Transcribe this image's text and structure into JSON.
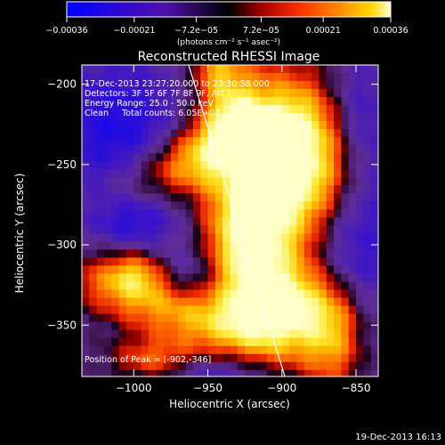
{
  "chart_data": {
    "type": "heatmap",
    "title": "Reconstructed RHESSI Image",
    "xlabel": "Heliocentric X (arcsec)",
    "ylabel": "Heliocentric Y (arcsec)",
    "xlim": [
      -1035,
      -835
    ],
    "ylim": [
      -382,
      -188
    ],
    "x_ticks": [
      -1000,
      -950,
      -900,
      -850
    ],
    "x_tick_labels": [
      "−1000",
      "−950",
      "−900",
      "−850"
    ],
    "y_ticks": [
      -200,
      -250,
      -300,
      -350
    ],
    "y_tick_labels": [
      "−200",
      "−250",
      "−300",
      "−350"
    ],
    "colorbar": {
      "label": "(photons cm⁻² s⁻¹ asec⁻²)",
      "range": [
        -0.00036,
        0.00036
      ],
      "ticks": [
        -0.00036,
        -0.00021,
        -7.2e-05,
        7.2e-05,
        0.00021,
        0.00036
      ],
      "tick_labels": [
        "−0.00036",
        "−0.00021",
        "−7.2e−05",
        "7.2e−05",
        "0.00021",
        "0.00036"
      ],
      "colors": [
        "#0000ff",
        "#4000c0",
        "#6020a0",
        "#300030",
        "#000000",
        "#a00000",
        "#ff3000",
        "#ff8000",
        "#ffd000",
        "#ffffc0"
      ]
    },
    "limb_line": {
      "x": [
        -963,
        -898
      ],
      "y": [
        -188,
        -382
      ]
    },
    "peak": {
      "x": -902,
      "y": -346
    }
  },
  "annotations": {
    "time_range": "17-Dec-2013 23:27:20.000 to 23:30:58.000",
    "detectors": "Detectors: 3F 5F 6F 7F 8F 9F, Att 1",
    "energy": "Energy Range: 25.0 - 50.0 keV",
    "clean": "Clean     Total counts: 6.05E+03",
    "peak": "Position of Peak = [-902,-346]"
  },
  "footer": {
    "timestamp": "19-Dec-2013 16:13"
  }
}
